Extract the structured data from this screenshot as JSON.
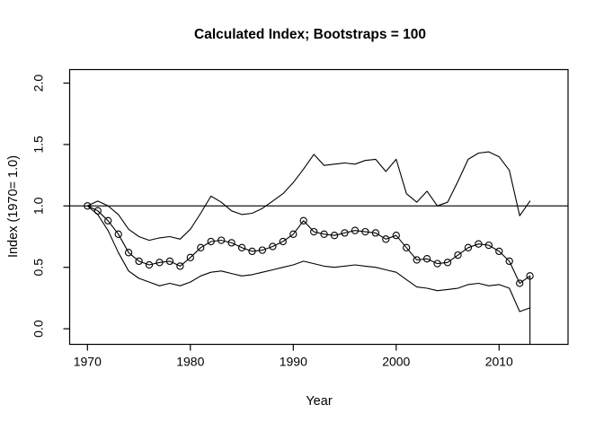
{
  "figure": {
    "title": "Calculated Index; Bootstraps = 100",
    "xlabel": "Year",
    "ylabel": "Index (1970= 1.0)"
  },
  "chart_data": {
    "type": "line",
    "title": "Calculated Index; Bootstraps = 100",
    "xlabel": "Year",
    "ylabel": "Index (1970= 1.0)",
    "x": [
      1970,
      1971,
      1972,
      1973,
      1974,
      1975,
      1976,
      1977,
      1978,
      1979,
      1980,
      1981,
      1982,
      1983,
      1984,
      1985,
      1986,
      1987,
      1988,
      1989,
      1990,
      1991,
      1992,
      1993,
      1994,
      1995,
      1996,
      1997,
      1998,
      1999,
      2000,
      2001,
      2002,
      2003,
      2004,
      2005,
      2006,
      2007,
      2008,
      2009,
      2010,
      2011,
      2012,
      2013
    ],
    "series": [
      {
        "name": "index-estimate",
        "style": "line-with-open-circle-markers",
        "values": [
          1.0,
          0.96,
          0.88,
          0.77,
          0.62,
          0.55,
          0.52,
          0.54,
          0.55,
          0.51,
          0.58,
          0.66,
          0.71,
          0.72,
          0.7,
          0.66,
          0.63,
          0.64,
          0.67,
          0.71,
          0.77,
          0.88,
          0.79,
          0.77,
          0.76,
          0.78,
          0.8,
          0.79,
          0.78,
          0.73,
          0.76,
          0.66,
          0.56,
          0.57,
          0.53,
          0.54,
          0.6,
          0.66,
          0.69,
          0.68,
          0.63,
          0.55,
          0.37,
          0.43
        ]
      },
      {
        "name": "upper-bootstrap-bound",
        "style": "line",
        "values": [
          1.0,
          1.04,
          1.0,
          0.93,
          0.81,
          0.75,
          0.72,
          0.74,
          0.75,
          0.73,
          0.81,
          0.94,
          1.08,
          1.03,
          0.96,
          0.93,
          0.94,
          0.98,
          1.04,
          1.1,
          1.19,
          1.3,
          1.42,
          1.33,
          1.34,
          1.35,
          1.34,
          1.37,
          1.38,
          1.28,
          1.38,
          1.1,
          1.03,
          1.12,
          1.0,
          1.03,
          1.2,
          1.38,
          1.43,
          1.44,
          1.4,
          1.29,
          0.92,
          1.04
        ]
      },
      {
        "name": "lower-bootstrap-bound",
        "style": "line",
        "values": [
          1.0,
          0.93,
          0.8,
          0.62,
          0.47,
          0.41,
          0.38,
          0.35,
          0.37,
          0.35,
          0.38,
          0.43,
          0.46,
          0.47,
          0.45,
          0.43,
          0.44,
          0.46,
          0.48,
          0.5,
          0.52,
          0.55,
          0.53,
          0.51,
          0.5,
          0.51,
          0.52,
          0.51,
          0.5,
          0.48,
          0.46,
          0.4,
          0.34,
          0.33,
          0.31,
          0.32,
          0.33,
          0.36,
          0.37,
          0.35,
          0.36,
          0.33,
          0.14,
          0.17
        ]
      }
    ],
    "reference_line_y": 1.0,
    "final_year_drop_line": {
      "x": 2013,
      "from_value": 0.43,
      "to_value": 0.0
    },
    "x_ticks": [
      1970,
      1980,
      1990,
      2000,
      2010
    ],
    "x_tick_labels": [
      "1970",
      "1980",
      "1990",
      "2000",
      "2010"
    ],
    "y_ticks": [
      0.0,
      0.5,
      1.0,
      1.5,
      2.0
    ],
    "y_tick_labels": [
      "0.0",
      "0.5",
      "1.0",
      "1.5",
      "2.0"
    ],
    "xlim": [
      1968.27,
      2016.7
    ],
    "ylim": [
      -0.127,
      2.11
    ],
    "grid": false,
    "legend": null,
    "line_color": "#000000",
    "background": "#ffffff"
  }
}
